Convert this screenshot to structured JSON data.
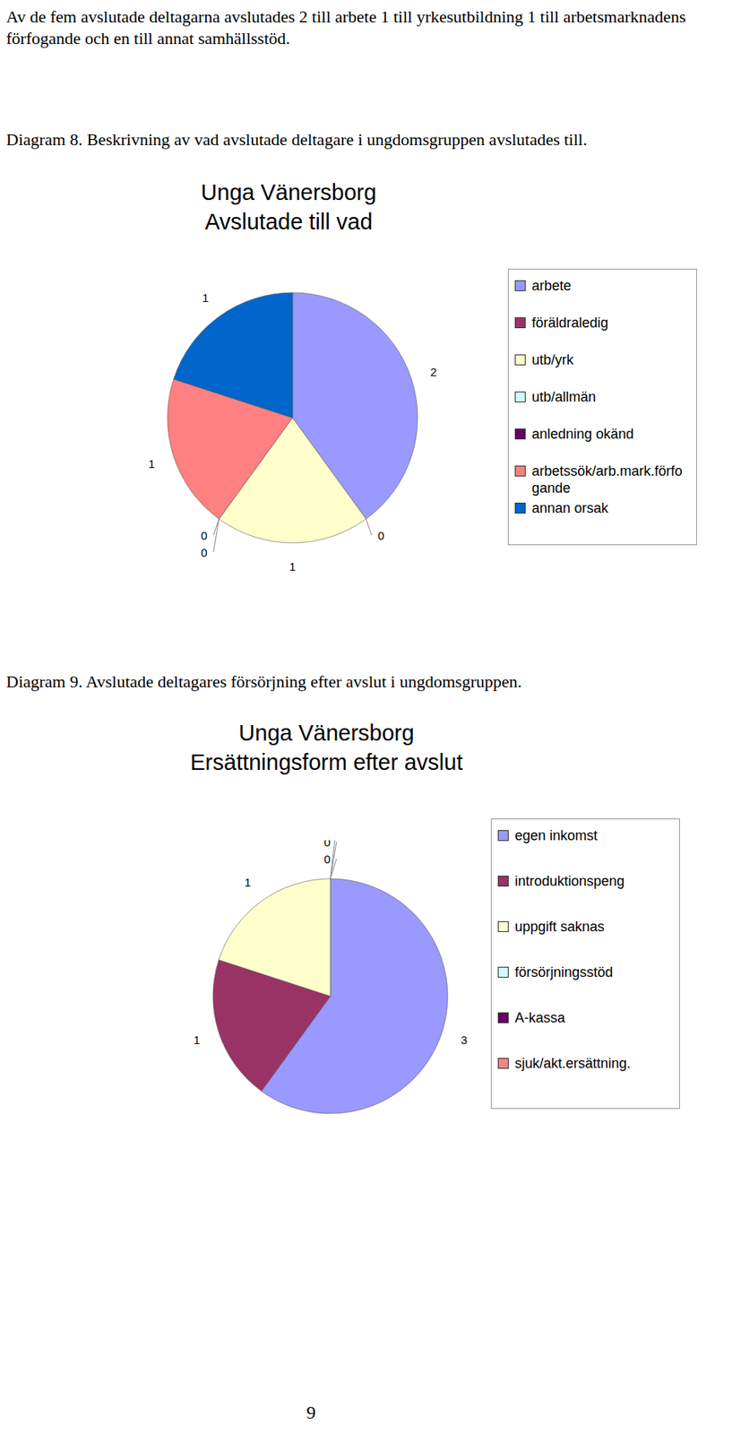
{
  "paragraph": "Av de fem avslutade deltagarna avslutades 2 till arbete 1 till yrkesutbildning 1 till arbetsmarknadens förfogande och en till annat samhällsstöd.",
  "chart_data": [
    {
      "caption": "Diagram 8. Beskrivning av vad avslutade deltagare i ungdomsgruppen avslutades till.",
      "type": "pie",
      "title": "Unga Vänersborg",
      "subtitle": "Avslutade till vad",
      "categories": [
        "arbete",
        "föräldraledig",
        "utb/yrk",
        "utb/allmän",
        "anledning okänd",
        "arbetssök/arb.mark.förfogande",
        "annan orsak"
      ],
      "values": [
        2,
        0,
        1,
        0,
        0,
        1,
        1
      ],
      "colors": [
        "#9999ff",
        "#993366",
        "#ffffcc",
        "#ccffff",
        "#660066",
        "#ff8080",
        "#0066cc"
      ],
      "data_labels": true,
      "legend": "right"
    },
    {
      "caption": "Diagram 9. Avslutade deltagares försörjning efter avslut i ungdomsgruppen.",
      "type": "pie",
      "title": "Unga Vänersborg",
      "subtitle": "Ersättningsform efter avslut",
      "categories": [
        "egen inkomst",
        "introduktionspeng",
        "uppgift saknas",
        "försörjningsstöd",
        "A-kassa",
        "sjuk/akt.ersättning."
      ],
      "values": [
        3,
        1,
        1,
        0,
        0,
        0
      ],
      "colors": [
        "#9999ff",
        "#993366",
        "#ffffcc",
        "#ccffff",
        "#660066",
        "#ff8080"
      ],
      "data_labels": true,
      "legend": "right"
    }
  ],
  "page_number": "9"
}
